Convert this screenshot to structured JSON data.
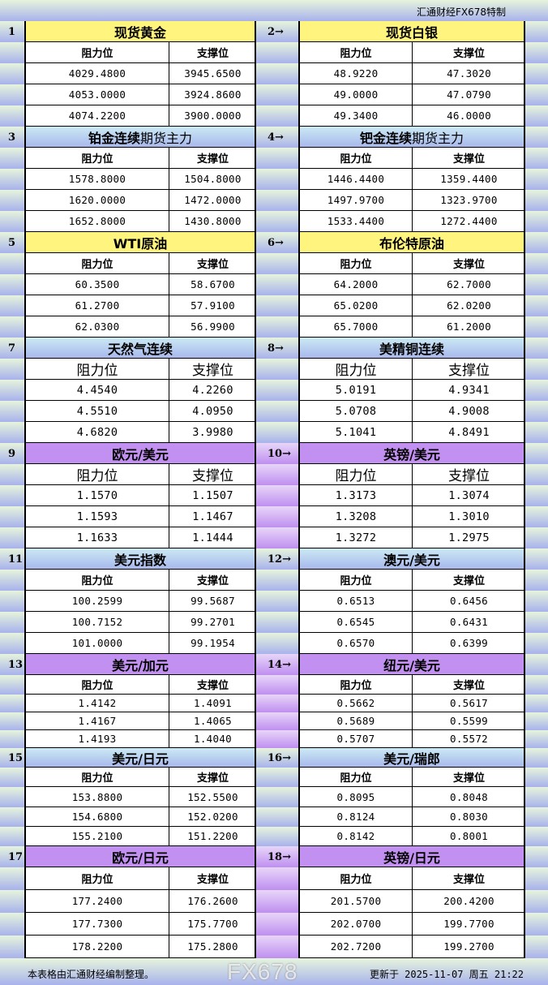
{
  "brand": "汇通财经FX678特制",
  "headers": {
    "resistance": "阻力位",
    "support": "支撑位"
  },
  "colors": {
    "yellow": "#fff47e",
    "blue": "#a8b8ec",
    "purple": "#c290f0"
  },
  "sections": [
    {
      "left": {
        "num": "1",
        "title": "现货黄金",
        "title_suffix": "",
        "style": "yellow",
        "rows": [
          [
            "4029.4800",
            "3945.6500"
          ],
          [
            "4053.0000",
            "3924.8600"
          ],
          [
            "4074.2200",
            "3900.0000"
          ]
        ]
      },
      "right": {
        "num": "2→",
        "title": "现货白银",
        "title_suffix": "",
        "style": "yellow",
        "rows": [
          [
            "48.9220",
            "47.3020"
          ],
          [
            "49.0000",
            "47.0790"
          ],
          [
            "49.3400",
            "46.0000"
          ]
        ]
      }
    },
    {
      "left": {
        "num": "3",
        "title": "铂金连续",
        "title_suffix": "期货主力",
        "style": "blue",
        "rows": [
          [
            "1578.8000",
            "1504.8000"
          ],
          [
            "1620.0000",
            "1472.0000"
          ],
          [
            "1652.8000",
            "1430.8000"
          ]
        ]
      },
      "right": {
        "num": "4→",
        "title": "钯金连续",
        "title_suffix": "期货主力",
        "style": "blue",
        "rows": [
          [
            "1446.4400",
            "1359.4400"
          ],
          [
            "1497.9700",
            "1323.9700"
          ],
          [
            "1533.4400",
            "1272.4400"
          ]
        ]
      }
    },
    {
      "left": {
        "num": "5",
        "title": "WTI原油",
        "title_suffix": "",
        "style": "yellow",
        "rows": [
          [
            "60.3500",
            "58.6700"
          ],
          [
            "61.2700",
            "57.9100"
          ],
          [
            "62.0300",
            "56.9900"
          ]
        ]
      },
      "right": {
        "num": "6→",
        "title": "布伦特原油",
        "title_suffix": "",
        "style": "yellow",
        "rows": [
          [
            "64.2000",
            "62.7000"
          ],
          [
            "65.0200",
            "62.0200"
          ],
          [
            "65.7000",
            "61.2000"
          ]
        ]
      }
    },
    {
      "left": {
        "num": "7",
        "title": "天然气连续",
        "title_suffix": "",
        "style": "blue",
        "rows": [
          [
            "4.4540",
            "4.2260"
          ],
          [
            "4.5510",
            "4.0950"
          ],
          [
            "4.6820",
            "3.9980"
          ]
        ]
      },
      "right": {
        "num": "8→",
        "title": "美精铜连续",
        "title_suffix": "",
        "style": "blue",
        "rows": [
          [
            "5.0191",
            "4.9341"
          ],
          [
            "5.0708",
            "4.9008"
          ],
          [
            "5.1041",
            "4.8491"
          ]
        ]
      }
    },
    {
      "left": {
        "num": "9",
        "title": "欧元/美元",
        "title_suffix": "",
        "style": "purple",
        "rows": [
          [
            "1.1570",
            "1.1507"
          ],
          [
            "1.1593",
            "1.1467"
          ],
          [
            "1.1633",
            "1.1444"
          ]
        ]
      },
      "right": {
        "num": "10→",
        "title": "英镑/美元",
        "title_suffix": "",
        "style": "purple",
        "rows": [
          [
            "1.3173",
            "1.3074"
          ],
          [
            "1.3208",
            "1.3010"
          ],
          [
            "1.3272",
            "1.2975"
          ]
        ]
      }
    },
    {
      "left": {
        "num": "11",
        "title": "美元指数",
        "title_suffix": "",
        "style": "blue",
        "rows": [
          [
            "100.2599",
            "99.5687"
          ],
          [
            "100.7152",
            "99.2701"
          ],
          [
            "101.0000",
            "99.1954"
          ]
        ]
      },
      "right": {
        "num": "12→",
        "title": "澳元/美元",
        "title_suffix": "",
        "style": "blue",
        "rows": [
          [
            "0.6513",
            "0.6456"
          ],
          [
            "0.6545",
            "0.6431"
          ],
          [
            "0.6570",
            "0.6399"
          ]
        ]
      }
    },
    {
      "left": {
        "num": "13",
        "title": "美元/加元",
        "title_suffix": "",
        "style": "purple",
        "rows": [
          [
            "1.4142",
            "1.4091"
          ],
          [
            "1.4167",
            "1.4065"
          ],
          [
            "1.4193",
            "1.4040"
          ]
        ]
      },
      "right": {
        "num": "14→",
        "title": "纽元/美元",
        "title_suffix": "",
        "style": "purple",
        "rows": [
          [
            "0.5662",
            "0.5617"
          ],
          [
            "0.5689",
            "0.5599"
          ],
          [
            "0.5707",
            "0.5572"
          ]
        ]
      }
    },
    {
      "left": {
        "num": "15",
        "title": "美元/日元",
        "title_suffix": "",
        "style": "blue",
        "rows": [
          [
            "153.8800",
            "152.5500"
          ],
          [
            "154.6800",
            "152.0200"
          ],
          [
            "155.2100",
            "151.2200"
          ]
        ]
      },
      "right": {
        "num": "16→",
        "title": "美元/瑞郎",
        "title_suffix": "",
        "style": "blue",
        "rows": [
          [
            "0.8095",
            "0.8048"
          ],
          [
            "0.8124",
            "0.8030"
          ],
          [
            "0.8142",
            "0.8001"
          ]
        ]
      }
    },
    {
      "left": {
        "num": "17",
        "title": "欧元/日元",
        "title_suffix": "",
        "style": "purple",
        "rows": [
          [
            "177.2400",
            "176.2600"
          ],
          [
            "177.7300",
            "175.7700"
          ],
          [
            "178.2200",
            "175.2800"
          ]
        ]
      },
      "right": {
        "num": "18→",
        "title": "英镑/日元",
        "title_suffix": "",
        "style": "purple",
        "rows": [
          [
            "201.5700",
            "200.4200"
          ],
          [
            "202.0700",
            "199.7700"
          ],
          [
            "202.7200",
            "199.2700"
          ]
        ]
      }
    }
  ],
  "footer": {
    "note": "本表格由汇通财经编制整理。",
    "updated": "更新于 2025-11-07 周五 21:22"
  },
  "watermark": "FX678"
}
